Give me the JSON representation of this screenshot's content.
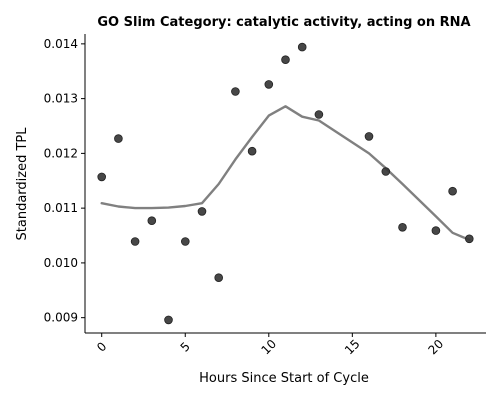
{
  "chart_data": {
    "type": "scatter",
    "title": "GO Slim Category: catalytic activity, acting on RNA",
    "xlabel": "Hours Since Start of Cycle",
    "ylabel": "Standardized TPL",
    "xlim": [
      -1,
      23
    ],
    "ylim": [
      0.00872,
      0.01418
    ],
    "xticks": [
      0,
      5,
      10,
      15,
      20
    ],
    "xtick_labels": [
      "0",
      "5",
      "10",
      "15",
      "20"
    ],
    "yticks": [
      0.009,
      0.01,
      0.011,
      0.012,
      0.013,
      0.014
    ],
    "ytick_labels": [
      "0.009",
      "0.010",
      "0.011",
      "0.012",
      "0.013",
      "0.014"
    ],
    "grid": false,
    "series": [
      {
        "kind": "points",
        "color": "#333333",
        "points": [
          {
            "x": 0,
            "y": 0.01157
          },
          {
            "x": 1,
            "y": 0.01227
          },
          {
            "x": 2,
            "y": 0.01039
          },
          {
            "x": 3,
            "y": 0.01077
          },
          {
            "x": 4,
            "y": 0.00896
          },
          {
            "x": 5,
            "y": 0.01039
          },
          {
            "x": 6,
            "y": 0.01094
          },
          {
            "x": 7,
            "y": 0.00973
          },
          {
            "x": 8,
            "y": 0.01313
          },
          {
            "x": 9,
            "y": 0.01204
          },
          {
            "x": 10,
            "y": 0.01326
          },
          {
            "x": 11,
            "y": 0.01371
          },
          {
            "x": 12,
            "y": 0.01394
          },
          {
            "x": 13,
            "y": 0.01271
          },
          {
            "x": 16,
            "y": 0.01231
          },
          {
            "x": 17,
            "y": 0.01167
          },
          {
            "x": 18,
            "y": 0.01065
          },
          {
            "x": 20,
            "y": 0.01059
          },
          {
            "x": 21,
            "y": 0.01131
          },
          {
            "x": 22,
            "y": 0.01044
          }
        ]
      },
      {
        "kind": "trend",
        "color": "#808080",
        "points": [
          {
            "x": 0,
            "y": 0.01109
          },
          {
            "x": 1,
            "y": 0.01103
          },
          {
            "x": 2,
            "y": 0.011
          },
          {
            "x": 3,
            "y": 0.011
          },
          {
            "x": 4,
            "y": 0.01101
          },
          {
            "x": 5,
            "y": 0.01104
          },
          {
            "x": 6,
            "y": 0.01109
          },
          {
            "x": 7,
            "y": 0.01144
          },
          {
            "x": 8,
            "y": 0.01189
          },
          {
            "x": 9,
            "y": 0.0123
          },
          {
            "x": 10,
            "y": 0.01269
          },
          {
            "x": 11,
            "y": 0.01286
          },
          {
            "x": 12,
            "y": 0.01267
          },
          {
            "x": 13,
            "y": 0.0126
          },
          {
            "x": 16,
            "y": 0.012
          },
          {
            "x": 17,
            "y": 0.01173
          },
          {
            "x": 18,
            "y": 0.01144
          },
          {
            "x": 20,
            "y": 0.01085
          },
          {
            "x": 21,
            "y": 0.01055
          },
          {
            "x": 22,
            "y": 0.01042
          }
        ]
      }
    ]
  }
}
